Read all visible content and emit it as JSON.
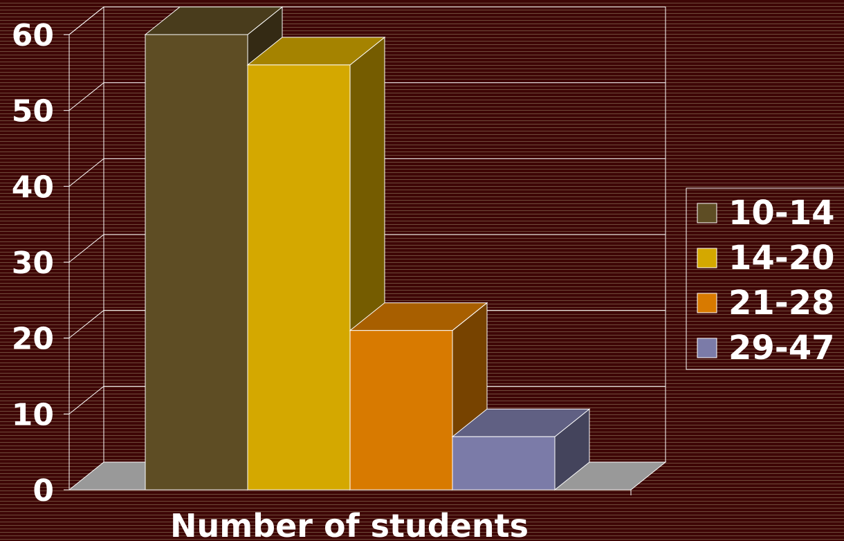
{
  "chart_data": {
    "type": "bar",
    "title": "",
    "xlabel": "Number of students",
    "ylabel": "",
    "ylim": [
      0,
      60
    ],
    "yticks": [
      0,
      10,
      20,
      30,
      40,
      50,
      60
    ],
    "grid": true,
    "legend_position": "right",
    "series": [
      {
        "name": "10-14",
        "value": 60,
        "color": "#5e4d24"
      },
      {
        "name": "14-20",
        "value": 56,
        "color": "#d4a800"
      },
      {
        "name": "21-28",
        "value": 21,
        "color": "#d87a00"
      },
      {
        "name": "29-47",
        "value": 7,
        "color": "#7b7ba8"
      }
    ]
  }
}
